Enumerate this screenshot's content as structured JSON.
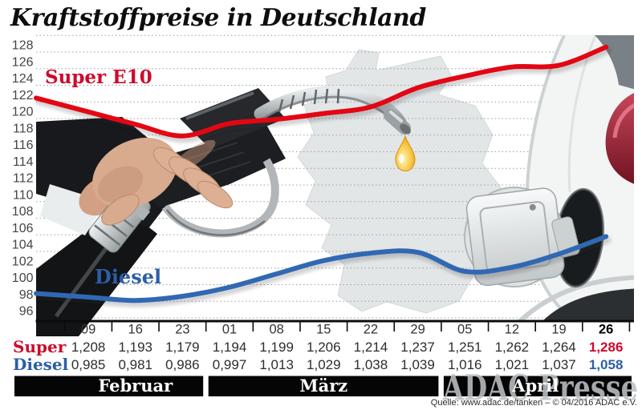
{
  "title": "Kraftstoffpreise in Deutschland",
  "source_line": "Quelle: www.adac.de/tanken – © 04/2016  ADAC e.V.",
  "watermark": "ADAC Presse",
  "decor_icons": [
    "germany-map-silhouette",
    "fuel-nozzle-photo",
    "fuel-drop-icon",
    "car-fuel-cap-photo"
  ],
  "colors": {
    "super_line": "#e30613",
    "super_text": "#ce0a2c",
    "diesel_line": "#3068b3",
    "diesel_text": "#2b5ea9",
    "grid": "#9aa0a2",
    "axis": "#0b0b0b",
    "month_bar": "#050505",
    "watermark_gray": "#bcc0c3"
  },
  "chart_data": {
    "type": "line",
    "title": "Kraftstoffpreise in Deutschland",
    "categories": [
      "09",
      "16",
      "23",
      "01",
      "08",
      "15",
      "22",
      "29",
      "05",
      "12",
      "19",
      "26"
    ],
    "highlight_column": 11,
    "months": [
      {
        "label": "Februar",
        "from": 0,
        "to": 3
      },
      {
        "label": "März",
        "from": 3,
        "to": 8
      },
      {
        "label": "April",
        "from": 8,
        "to": 12
      }
    ],
    "ylim": [
      96,
      130
    ],
    "ytick_step": 2,
    "ylabel_max": 128,
    "grid": true,
    "legend_position": "inline-labels",
    "series": [
      {
        "name": "Super E10",
        "table_label": "Super",
        "color": "#e30613",
        "text_color": "#ce0a2c",
        "values": [
          120.8,
          119.3,
          117.9,
          119.4,
          119.9,
          120.6,
          121.4,
          123.7,
          125.1,
          126.2,
          126.4,
          128.6
        ],
        "display": [
          "1,208",
          "1,193",
          "1,179",
          "1,194",
          "1,199",
          "1,206",
          "1,214",
          "1,237",
          "1,251",
          "1,262",
          "1,264",
          "1,286"
        ]
      },
      {
        "name": "Diesel",
        "table_label": "Diesel",
        "color": "#3068b3",
        "text_color": "#2b5ea9",
        "values": [
          98.5,
          98.1,
          98.6,
          99.7,
          101.3,
          102.9,
          103.8,
          103.9,
          101.6,
          102.1,
          103.7,
          105.8
        ],
        "display": [
          "0,985",
          "0,981",
          "0,986",
          "0,997",
          "1,013",
          "1,029",
          "1,038",
          "1,039",
          "1,016",
          "1,021",
          "1,037",
          "1,058"
        ]
      }
    ]
  }
}
